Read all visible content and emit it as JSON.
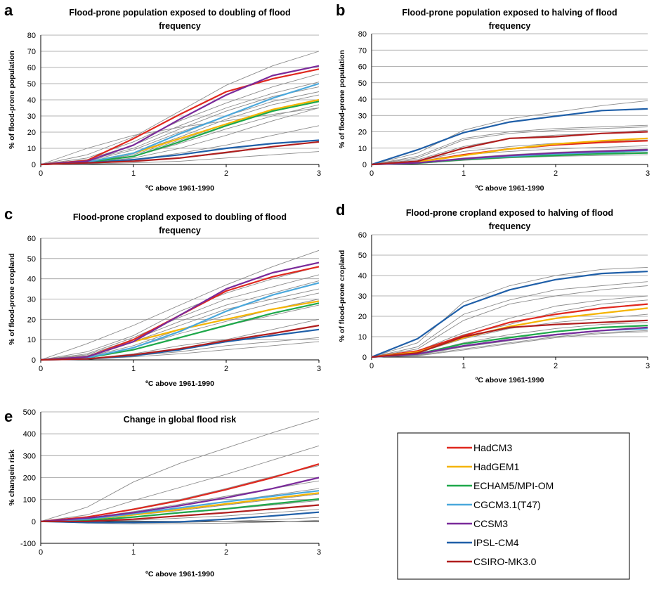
{
  "legend": {
    "entries": [
      {
        "name": "HadCM3",
        "color": "#e0281e"
      },
      {
        "name": "HadGEM1",
        "color": "#f5b400"
      },
      {
        "name": "ECHAM5/MPI-OM",
        "color": "#1ea84a"
      },
      {
        "name": "CGCM3.1(T47)",
        "color": "#4aa8dc"
      },
      {
        "name": "CCSM3",
        "color": "#7a2a9a"
      },
      {
        "name": "IPSL-CM4",
        "color": "#1f5fa8"
      },
      {
        "name": "CSIRO-MK3.0",
        "color": "#b01e1e"
      }
    ]
  },
  "chart_data": [
    {
      "letter": "a",
      "type": "line",
      "title_lines": [
        "Flood-prone population exposed to doubling of flood",
        "frequency"
      ],
      "xlabel": "ºC above 1961-1990",
      "ylabel": "% of flood-prone population",
      "x": [
        0,
        0.5,
        1,
        1.5,
        2,
        2.5,
        3
      ],
      "xticks": [
        0,
        1,
        2,
        3
      ],
      "ylim": [
        0,
        80
      ],
      "yticks": [
        0,
        10,
        20,
        30,
        40,
        50,
        60,
        70,
        80
      ],
      "grid": true,
      "series": [
        {
          "legend_index": 0,
          "values": [
            0,
            2.5,
            16,
            31,
            45,
            53,
            59
          ]
        },
        {
          "legend_index": 1,
          "values": [
            0,
            1.5,
            7,
            16,
            25,
            34,
            40
          ]
        },
        {
          "legend_index": 2,
          "values": [
            0,
            1.5,
            5,
            14,
            24,
            33,
            39
          ]
        },
        {
          "legend_index": 3,
          "values": [
            0,
            1.5,
            7,
            19,
            30,
            41,
            50
          ]
        },
        {
          "legend_index": 4,
          "values": [
            0,
            2,
            12,
            28,
            43,
            55,
            61
          ]
        },
        {
          "legend_index": 5,
          "values": [
            0,
            1,
            3,
            6,
            10,
            13,
            15
          ]
        },
        {
          "legend_index": 6,
          "values": [
            0,
            1,
            2,
            4,
            7.5,
            11,
            14
          ]
        }
      ],
      "background_series": [
        [
          0,
          6,
          17,
          33,
          49,
          61,
          70
        ],
        [
          0,
          4,
          14,
          27,
          38,
          48,
          56
        ],
        [
          0,
          3,
          12,
          24,
          35,
          44,
          51
        ],
        [
          0,
          2.5,
          10,
          22,
          33,
          42,
          48
        ],
        [
          0,
          2,
          9,
          20,
          30,
          39,
          45
        ],
        [
          0,
          1.5,
          7,
          17,
          28,
          37,
          43
        ],
        [
          0,
          1.5,
          6,
          15,
          25,
          34,
          40
        ],
        [
          0,
          1,
          5,
          13,
          22,
          30,
          37
        ],
        [
          0,
          1,
          4,
          10,
          18,
          27,
          35
        ],
        [
          0,
          0.5,
          3,
          7,
          12,
          18,
          24
        ],
        [
          0,
          0.5,
          2,
          4,
          7,
          11,
          14
        ],
        [
          0,
          10,
          18,
          23,
          27,
          31,
          35
        ],
        [
          0,
          0.3,
          1,
          2,
          4,
          6,
          8
        ]
      ]
    },
    {
      "letter": "b",
      "type": "line",
      "title_lines": [
        "Flood-prone population exposed to halving of flood",
        "frequency"
      ],
      "xlabel": "ºC above 1961-1990",
      "ylabel": "% of flood-prone population",
      "x": [
        0,
        0.5,
        1,
        1.5,
        2,
        2.5,
        3
      ],
      "xticks": [
        0,
        1,
        2,
        3
      ],
      "ylim": [
        0,
        80
      ],
      "yticks": [
        0,
        10,
        20,
        30,
        40,
        50,
        60,
        70,
        80
      ],
      "grid": true,
      "series": [
        {
          "legend_index": 0,
          "values": [
            0,
            1.5,
            6,
            9.5,
            12,
            13.5,
            14.5
          ]
        },
        {
          "legend_index": 1,
          "values": [
            0,
            1.5,
            5.5,
            9.5,
            12.5,
            14.5,
            16
          ]
        },
        {
          "legend_index": 2,
          "values": [
            0,
            0.8,
            3,
            4.5,
            5.5,
            6.5,
            7
          ]
        },
        {
          "legend_index": 3,
          "values": [
            0,
            1,
            3.5,
            5,
            6.5,
            7.5,
            8.5
          ]
        },
        {
          "legend_index": 4,
          "values": [
            0,
            1,
            3.5,
            5.5,
            7,
            8,
            9
          ]
        },
        {
          "legend_index": 5,
          "values": [
            0,
            9,
            19.5,
            26,
            29.5,
            33,
            34
          ]
        },
        {
          "legend_index": 6,
          "values": [
            0,
            2,
            10,
            16,
            17,
            19,
            20
          ]
        }
      ],
      "background_series": [
        [
          0,
          7,
          21,
          28,
          32,
          36,
          39
        ],
        [
          0,
          5,
          16,
          20,
          22,
          23,
          24
        ],
        [
          0,
          4,
          15,
          19,
          21,
          22,
          23
        ],
        [
          0,
          3,
          11,
          16,
          18,
          19,
          21
        ],
        [
          0,
          2,
          8,
          11,
          13,
          14,
          15
        ],
        [
          0,
          1.5,
          6,
          8,
          9.5,
          10.5,
          11.5
        ],
        [
          0,
          1,
          4,
          6,
          7.5,
          8.5,
          9.5
        ],
        [
          0,
          0.8,
          3,
          5,
          6,
          7,
          7.5
        ],
        [
          0,
          0.6,
          2.5,
          4,
          5,
          5.5,
          6
        ]
      ]
    },
    {
      "letter": "c",
      "type": "line",
      "title_lines": [
        "Flood-prone cropland exposed to doubling of flood",
        "frequency"
      ],
      "xlabel": "ºC above 1961-1990",
      "ylabel": "% of flood-prone cropland",
      "x": [
        0,
        0.5,
        1,
        1.5,
        2,
        2.5,
        3
      ],
      "xticks": [
        0,
        1,
        2,
        3
      ],
      "ylim": [
        0,
        60
      ],
      "yticks": [
        0,
        10,
        20,
        30,
        40,
        50,
        60
      ],
      "grid": true,
      "series": [
        {
          "legend_index": 0,
          "values": [
            0,
            1.5,
            10,
            22,
            34,
            41,
            46
          ]
        },
        {
          "legend_index": 1,
          "values": [
            0,
            1.5,
            9,
            15,
            20,
            25,
            29
          ]
        },
        {
          "legend_index": 2,
          "values": [
            0,
            1,
            5,
            11,
            17,
            23,
            28
          ]
        },
        {
          "legend_index": 3,
          "values": [
            0,
            1,
            6,
            14,
            24,
            32,
            38
          ]
        },
        {
          "legend_index": 4,
          "values": [
            0,
            1.5,
            9,
            22,
            35,
            43,
            48
          ]
        },
        {
          "legend_index": 5,
          "values": [
            0,
            0.5,
            2,
            5,
            9,
            12,
            15
          ]
        },
        {
          "legend_index": 6,
          "values": [
            0,
            0.5,
            2.5,
            5.5,
            9.5,
            13,
            17
          ]
        }
      ],
      "background_series": [
        [
          0,
          8,
          17,
          27,
          37,
          46,
          54
        ],
        [
          0,
          4,
          12,
          24,
          33,
          40,
          46
        ],
        [
          0,
          3,
          11,
          21,
          30,
          36,
          42
        ],
        [
          0,
          2.5,
          10,
          19,
          27,
          33,
          39
        ],
        [
          0,
          2,
          9,
          17,
          25,
          30,
          35
        ],
        [
          0,
          1.5,
          7,
          15,
          22,
          28,
          33
        ],
        [
          0,
          1.2,
          6,
          13,
          19,
          25,
          30
        ],
        [
          0,
          1,
          5,
          11,
          17,
          22,
          27
        ],
        [
          0,
          0.5,
          3,
          7,
          10,
          15,
          20
        ],
        [
          0,
          0.3,
          2,
          4,
          7,
          9,
          11
        ],
        [
          0,
          0.2,
          1.5,
          3,
          5,
          7,
          9
        ]
      ]
    },
    {
      "letter": "d",
      "type": "line",
      "title_lines": [
        "Flood-prone cropland exposed to halving of flood",
        "frequency"
      ],
      "xlabel": "ºC above 1961-1990",
      "ylabel": "% of flood-prone cropland",
      "x": [
        0,
        0.5,
        1,
        1.5,
        2,
        2.5,
        3
      ],
      "xticks": [
        0,
        1,
        2,
        3
      ],
      "ylim": [
        0,
        60
      ],
      "yticks": [
        0,
        10,
        20,
        30,
        40,
        50,
        60
      ],
      "grid": true,
      "series": [
        {
          "legend_index": 0,
          "values": [
            0,
            3,
            10.5,
            17,
            21,
            24,
            26
          ]
        },
        {
          "legend_index": 1,
          "values": [
            0,
            2.5,
            9.5,
            15,
            19,
            21.5,
            24
          ]
        },
        {
          "legend_index": 2,
          "values": [
            0,
            1.5,
            6.5,
            9.5,
            12.5,
            14.5,
            15.5
          ]
        },
        {
          "legend_index": 3,
          "values": [
            0,
            1.5,
            5.5,
            8.5,
            11,
            13,
            14
          ]
        },
        {
          "legend_index": 4,
          "values": [
            0,
            1.5,
            5.5,
            8.5,
            11,
            13,
            14.5
          ]
        },
        {
          "legend_index": 5,
          "values": [
            0,
            9,
            25,
            33,
            38,
            41,
            42
          ]
        },
        {
          "legend_index": 6,
          "values": [
            0,
            2,
            10,
            14.5,
            16,
            17,
            18
          ]
        }
      ],
      "background_series": [
        [
          0,
          7,
          27,
          35,
          40,
          43,
          44
        ],
        [
          0,
          5,
          21,
          28,
          33,
          35,
          37
        ],
        [
          0,
          4,
          18,
          26,
          30,
          33,
          35
        ],
        [
          0,
          3,
          12,
          19,
          25,
          28,
          30
        ],
        [
          0,
          2.5,
          11,
          16,
          22,
          26,
          28
        ],
        [
          0,
          2,
          9,
          14,
          17,
          19,
          21
        ],
        [
          0,
          1.5,
          7,
          11,
          14,
          16,
          17
        ],
        [
          0,
          1,
          5,
          8,
          11,
          13,
          14
        ],
        [
          0,
          0.8,
          4,
          7,
          10,
          12,
          13
        ],
        [
          0,
          0.6,
          3.5,
          6.5,
          9.5,
          11.5,
          12.5
        ]
      ]
    },
    {
      "letter": "e",
      "type": "line",
      "title_lines": [
        "Change in global flood risk"
      ],
      "xlabel": "ºC above 1961-1990",
      "ylabel": "% changein risk",
      "x": [
        0,
        0.5,
        1,
        1.5,
        2,
        2.5,
        3
      ],
      "xticks": [
        0,
        1,
        2,
        3
      ],
      "ylim": [
        -100,
        500
      ],
      "yticks": [
        -100,
        0,
        100,
        200,
        300,
        400,
        500
      ],
      "grid": true,
      "series": [
        {
          "legend_index": 0,
          "values": [
            0,
            20,
            55,
            95,
            145,
            200,
            262
          ]
        },
        {
          "legend_index": 1,
          "values": [
            0,
            10,
            30,
            55,
            80,
            105,
            130
          ]
        },
        {
          "legend_index": 2,
          "values": [
            0,
            5,
            20,
            40,
            58,
            80,
            102
          ]
        },
        {
          "legend_index": 3,
          "values": [
            0,
            10,
            35,
            62,
            90,
            115,
            140
          ]
        },
        {
          "legend_index": 4,
          "values": [
            0,
            15,
            40,
            72,
            108,
            150,
            200
          ]
        },
        {
          "legend_index": 5,
          "values": [
            0,
            -5,
            -5,
            -2,
            10,
            25,
            42
          ]
        },
        {
          "legend_index": 6,
          "values": [
            0,
            0,
            10,
            25,
            40,
            57,
            75
          ]
        }
      ],
      "background_series": [
        [
          0,
          65,
          180,
          265,
          335,
          405,
          470
        ],
        [
          0,
          30,
          95,
          155,
          215,
          280,
          345
        ],
        [
          0,
          20,
          58,
          100,
          150,
          205,
          255
        ],
        [
          0,
          15,
          45,
          78,
          115,
          150,
          185
        ],
        [
          0,
          12,
          35,
          60,
          90,
          120,
          150
        ],
        [
          0,
          8,
          28,
          50,
          75,
          100,
          125
        ],
        [
          0,
          5,
          20,
          38,
          55,
          75,
          95
        ],
        [
          0,
          0,
          5,
          15,
          25,
          40,
          55
        ],
        [
          0,
          -5,
          -8,
          -5,
          0,
          8,
          18
        ],
        [
          0,
          -8,
          -12,
          -10,
          -8,
          -3,
          5
        ]
      ]
    }
  ]
}
